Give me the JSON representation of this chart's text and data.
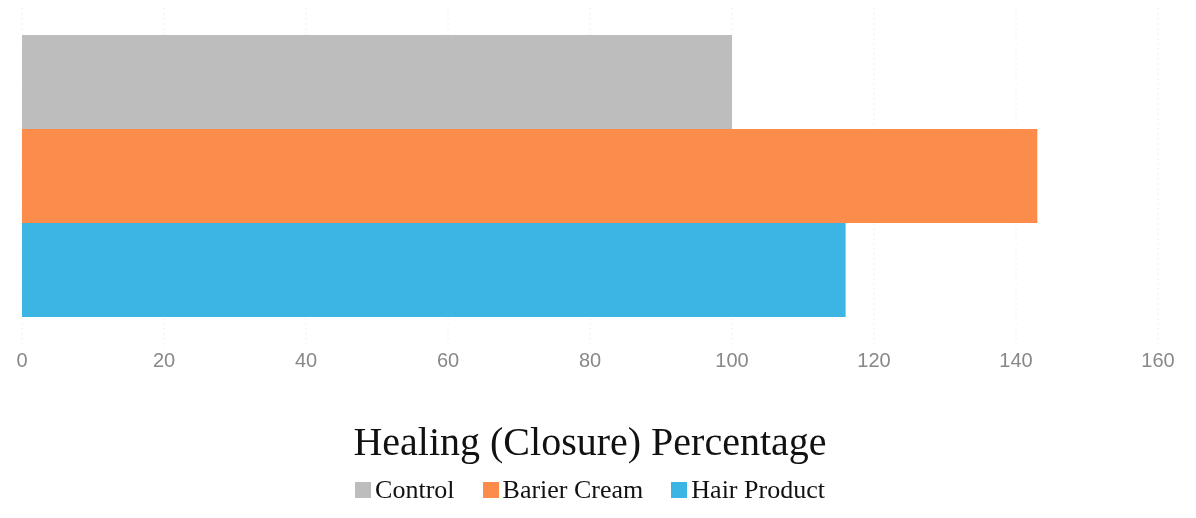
{
  "chart_data": {
    "type": "bar",
    "orientation": "horizontal",
    "xlabel": "Healing (Closure) Percentage",
    "categories": [
      null
    ],
    "series": [
      {
        "name": "Control",
        "color": "#bdbdbd",
        "values": [
          100
        ]
      },
      {
        "name": "Barier Cream",
        "color": "#fb8c4c",
        "values": [
          143
        ]
      },
      {
        "name": "Hair Product",
        "color": "#3cb4e4",
        "values": [
          116
        ]
      }
    ],
    "xlim": [
      0,
      160
    ],
    "xticks": [
      0,
      20,
      40,
      60,
      80,
      100,
      120,
      140,
      160
    ],
    "grid": "x",
    "legend": "bottom"
  }
}
